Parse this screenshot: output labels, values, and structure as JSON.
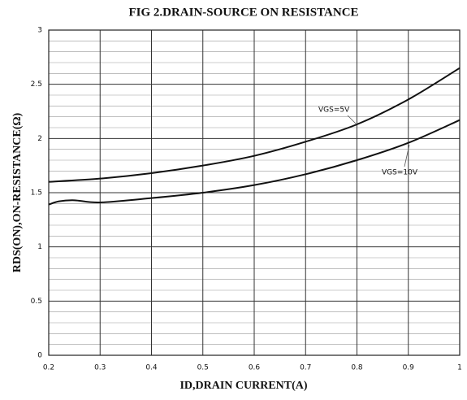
{
  "chart_data": {
    "type": "line",
    "title": "FIG 2.DRAIN-SOURCE ON RESISTANCE",
    "x_label": "ID,DRAIN CURRENT(A)",
    "y_label": "RDS(ON),ON-RESISTANCE(Ω)",
    "xlim": [
      0.2,
      1
    ],
    "xticks": [
      0.2,
      0.3,
      0.4,
      0.5,
      0.6,
      0.7,
      0.8,
      0.9,
      1
    ],
    "ylim": [
      0,
      3
    ],
    "yticks": [
      0,
      0.5,
      1,
      1.5,
      2,
      2.5,
      3
    ],
    "grid": true,
    "series": [
      {
        "name": "VGS=5V",
        "color": "#111111",
        "x": [
          0.2,
          0.3,
          0.4,
          0.5,
          0.6,
          0.7,
          0.8,
          0.9,
          1
        ],
        "values": [
          1.6,
          1.63,
          1.68,
          1.75,
          1.84,
          1.97,
          2.13,
          2.36,
          2.65
        ]
      },
      {
        "name": "VGS=10V",
        "color": "#111111",
        "x": [
          0.2,
          0.22,
          0.25,
          0.3,
          0.4,
          0.5,
          0.6,
          0.7,
          0.8,
          0.9,
          1
        ],
        "values": [
          1.39,
          1.42,
          1.43,
          1.41,
          1.45,
          1.5,
          1.57,
          1.67,
          1.8,
          1.96,
          2.17
        ]
      }
    ]
  }
}
